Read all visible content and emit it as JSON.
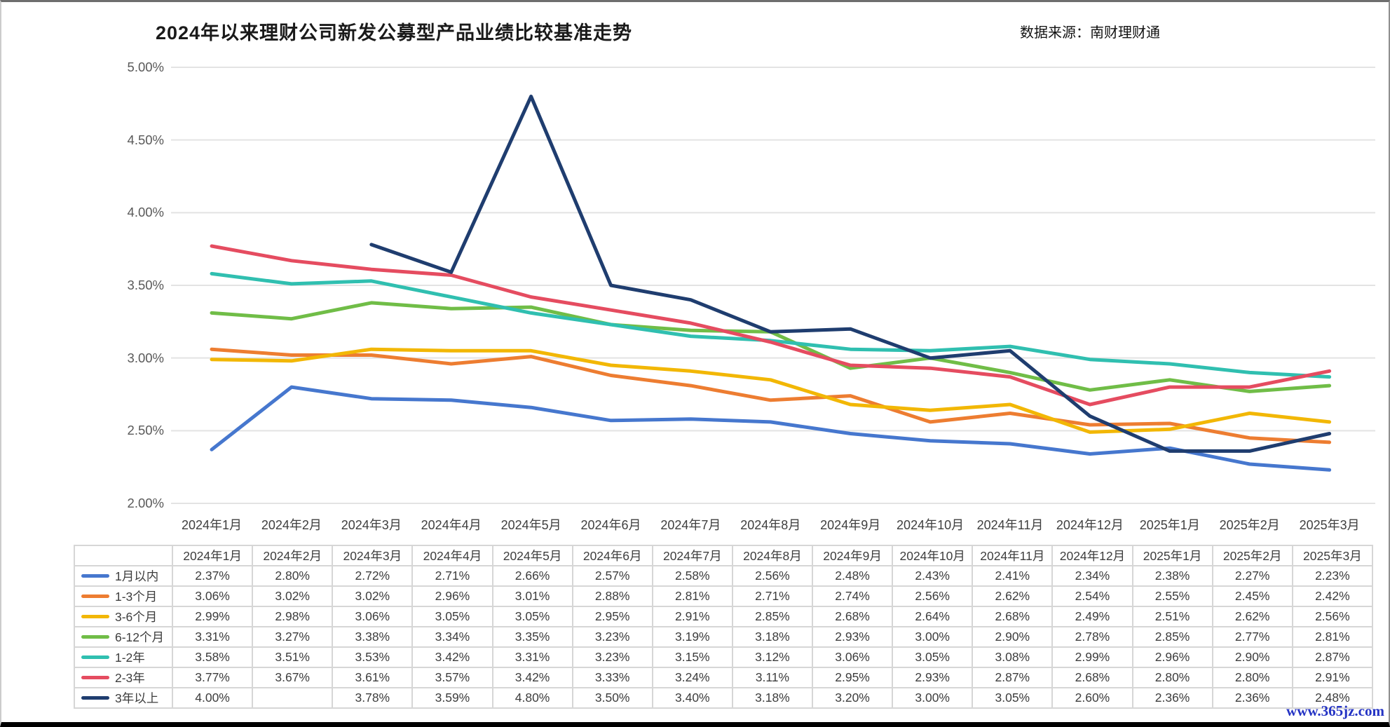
{
  "header": {
    "title": "2024年以来理财公司新发公募型产品业绩比较基准走势",
    "source": "数据来源：南财理财通"
  },
  "watermark": "www.365jz.com",
  "chart_data": {
    "type": "line",
    "title": "2024年以来理财公司新发公募型产品业绩比较基准走势",
    "categories": [
      "2024年1月",
      "2024年2月",
      "2024年3月",
      "2024年4月",
      "2024年5月",
      "2024年6月",
      "2024年7月",
      "2024年8月",
      "2024年9月",
      "2024年10月",
      "2024年11月",
      "2024年12月",
      "2025年1月",
      "2025年2月",
      "2025年3月"
    ],
    "y_ticks": [
      "5.00%",
      "4.50%",
      "4.00%",
      "3.50%",
      "3.00%",
      "2.50%",
      "2.00%"
    ],
    "ylim": [
      2.0,
      5.0
    ],
    "ytick_step": 0.5,
    "grid": "horizontal",
    "legend_position": "table-left-column",
    "series": [
      {
        "name": "1月以内",
        "color": "#4677CE",
        "values": [
          2.37,
          2.8,
          2.72,
          2.71,
          2.66,
          2.57,
          2.58,
          2.56,
          2.48,
          2.43,
          2.41,
          2.34,
          2.38,
          2.27,
          2.23
        ]
      },
      {
        "name": "1-3个月",
        "color": "#ED7D31",
        "values": [
          3.06,
          3.02,
          3.02,
          2.96,
          3.01,
          2.88,
          2.81,
          2.71,
          2.74,
          2.56,
          2.62,
          2.54,
          2.55,
          2.45,
          2.42
        ]
      },
      {
        "name": "3-6个月",
        "color": "#F2B705",
        "values": [
          2.99,
          2.98,
          3.06,
          3.05,
          3.05,
          2.95,
          2.91,
          2.85,
          2.68,
          2.64,
          2.68,
          2.49,
          2.51,
          2.62,
          2.56
        ]
      },
      {
        "name": "6-12个月",
        "color": "#70BD47",
        "values": [
          3.31,
          3.27,
          3.38,
          3.34,
          3.35,
          3.23,
          3.19,
          3.18,
          2.93,
          3.0,
          2.9,
          2.78,
          2.85,
          2.77,
          2.81
        ]
      },
      {
        "name": "1-2年",
        "color": "#30BFB0",
        "values": [
          3.58,
          3.51,
          3.53,
          3.42,
          3.31,
          3.23,
          3.15,
          3.12,
          3.06,
          3.05,
          3.08,
          2.99,
          2.96,
          2.9,
          2.87
        ]
      },
      {
        "name": "2-3年",
        "color": "#E54C60",
        "values": [
          3.77,
          3.67,
          3.61,
          3.57,
          3.42,
          3.33,
          3.24,
          3.11,
          2.95,
          2.93,
          2.87,
          2.68,
          2.8,
          2.8,
          2.91
        ]
      },
      {
        "name": "3年以上",
        "color": "#1F3D6F",
        "values": [
          4.0,
          null,
          3.78,
          3.59,
          4.8,
          3.5,
          3.4,
          3.18,
          3.2,
          3.0,
          3.05,
          2.6,
          2.36,
          2.36,
          2.48
        ]
      }
    ]
  },
  "table": {
    "corner_label": "",
    "columns": [
      "2024年1月",
      "2024年2月",
      "2024年3月",
      "2024年4月",
      "2024年5月",
      "2024年6月",
      "2024年7月",
      "2024年8月",
      "2024年9月",
      "2024年10月",
      "2024年11月",
      "2024年12月",
      "2025年1月",
      "2025年2月",
      "2025年3月"
    ],
    "rows": [
      {
        "label": "1月以内",
        "cells": [
          "2.37%",
          "2.80%",
          "2.72%",
          "2.71%",
          "2.66%",
          "2.57%",
          "2.58%",
          "2.56%",
          "2.48%",
          "2.43%",
          "2.41%",
          "2.34%",
          "2.38%",
          "2.27%",
          "2.23%"
        ]
      },
      {
        "label": "1-3个月",
        "cells": [
          "3.06%",
          "3.02%",
          "3.02%",
          "2.96%",
          "3.01%",
          "2.88%",
          "2.81%",
          "2.71%",
          "2.74%",
          "2.56%",
          "2.62%",
          "2.54%",
          "2.55%",
          "2.45%",
          "2.42%"
        ]
      },
      {
        "label": "3-6个月",
        "cells": [
          "2.99%",
          "2.98%",
          "3.06%",
          "3.05%",
          "3.05%",
          "2.95%",
          "2.91%",
          "2.85%",
          "2.68%",
          "2.64%",
          "2.68%",
          "2.49%",
          "2.51%",
          "2.62%",
          "2.56%"
        ]
      },
      {
        "label": "6-12个月",
        "cells": [
          "3.31%",
          "3.27%",
          "3.38%",
          "3.34%",
          "3.35%",
          "3.23%",
          "3.19%",
          "3.18%",
          "2.93%",
          "3.00%",
          "2.90%",
          "2.78%",
          "2.85%",
          "2.77%",
          "2.81%"
        ]
      },
      {
        "label": "1-2年",
        "cells": [
          "3.58%",
          "3.51%",
          "3.53%",
          "3.42%",
          "3.31%",
          "3.23%",
          "3.15%",
          "3.12%",
          "3.06%",
          "3.05%",
          "3.08%",
          "2.99%",
          "2.96%",
          "2.90%",
          "2.87%"
        ]
      },
      {
        "label": "2-3年",
        "cells": [
          "3.77%",
          "3.67%",
          "3.61%",
          "3.57%",
          "3.42%",
          "3.33%",
          "3.24%",
          "3.11%",
          "2.95%",
          "2.93%",
          "2.87%",
          "2.68%",
          "2.80%",
          "2.80%",
          "2.91%"
        ]
      },
      {
        "label": "3年以上",
        "cells": [
          "4.00%",
          "",
          "3.78%",
          "3.59%",
          "4.80%",
          "3.50%",
          "3.40%",
          "3.18%",
          "3.20%",
          "3.00%",
          "3.05%",
          "2.60%",
          "2.36%",
          "2.36%",
          "2.48%"
        ]
      }
    ]
  }
}
